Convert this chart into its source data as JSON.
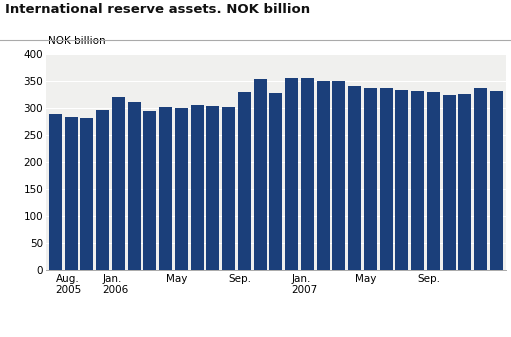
{
  "title": "International reserve assets. NOK billion",
  "ylabel": "NOK billion",
  "bar_color": "#1B3F7A",
  "ylim": [
    0,
    400
  ],
  "yticks": [
    0,
    50,
    100,
    150,
    200,
    250,
    300,
    350,
    400
  ],
  "values": [
    289,
    283,
    281,
    296,
    320,
    311,
    294,
    302,
    300,
    305,
    304,
    302,
    330,
    354,
    328,
    356,
    355,
    349,
    349,
    341,
    337,
    336,
    333,
    331,
    330,
    324,
    325,
    337,
    332
  ],
  "n_bars": 29,
  "tick_positions": [
    0,
    3,
    7,
    11,
    15,
    19,
    23
  ],
  "tick_labels": [
    "Aug.\n2005",
    "Jan.\n2006",
    "May",
    "Sep.",
    "Jan.\n2007",
    "May",
    "Sep."
  ],
  "bg_color": "#ffffff",
  "plot_bg_color": "#f0f0ee",
  "grid_color": "#ffffff",
  "title_fontsize": 9.5,
  "axis_fontsize": 7.5
}
